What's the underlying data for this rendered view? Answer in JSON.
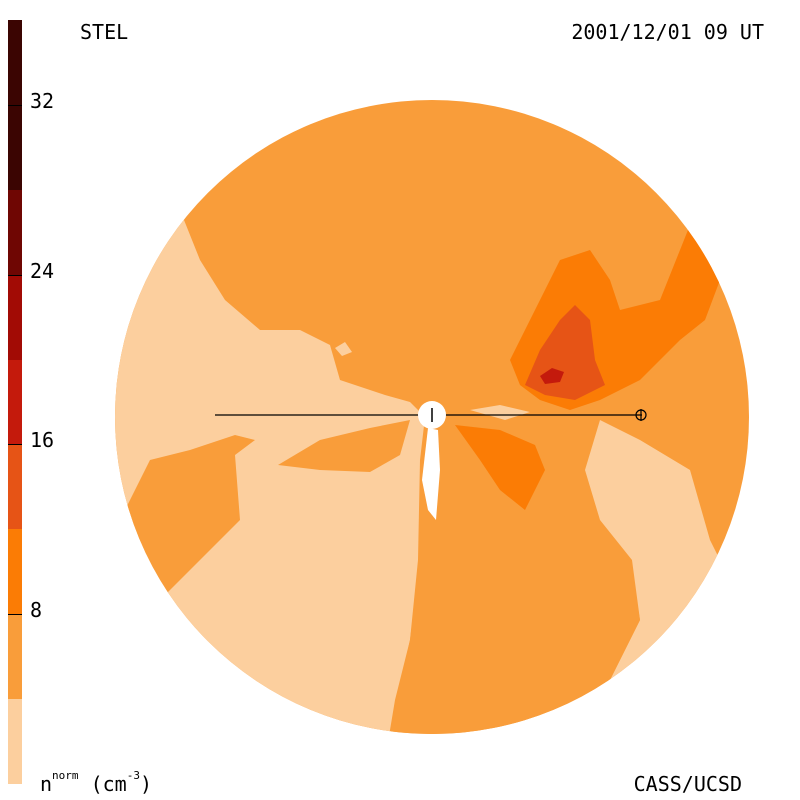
{
  "header": {
    "instrument": "STEL",
    "timestamp": "2001/12/01 09 UT"
  },
  "footer": {
    "credit": "CASS/UCSD",
    "quantity_base": "n",
    "quantity_sup": "norm",
    "quantity_units": "(cm",
    "quantity_units_exp": "-3",
    "quantity_units_close": ")"
  },
  "colorbar": {
    "ticks": [
      "32",
      "24",
      "16",
      "8"
    ],
    "levels": [
      {
        "from": 0,
        "to": 4,
        "color": "#fccf9e"
      },
      {
        "from": 4,
        "to": 8,
        "color": "#f99d3a"
      },
      {
        "from": 8,
        "to": 12,
        "color": "#fb7c05"
      },
      {
        "from": 12,
        "to": 16,
        "color": "#e65416"
      },
      {
        "from": 16,
        "to": 20,
        "color": "#c41a0c"
      },
      {
        "from": 20,
        "to": 24,
        "color": "#a20b05"
      },
      {
        "from": 24,
        "to": 28,
        "color": "#6f0603"
      },
      {
        "from": 28,
        "to": 36,
        "color": "#3b0502"
      }
    ],
    "range": [
      0,
      36
    ]
  },
  "map": {
    "background_color": "#f99d3a",
    "low_color": "#fccf9e",
    "mid_color": "#fb7c05",
    "high_color": "#e65416",
    "peak_color": "#c41a0c",
    "sun_color": "#ffffff",
    "line_color": "#000000"
  }
}
